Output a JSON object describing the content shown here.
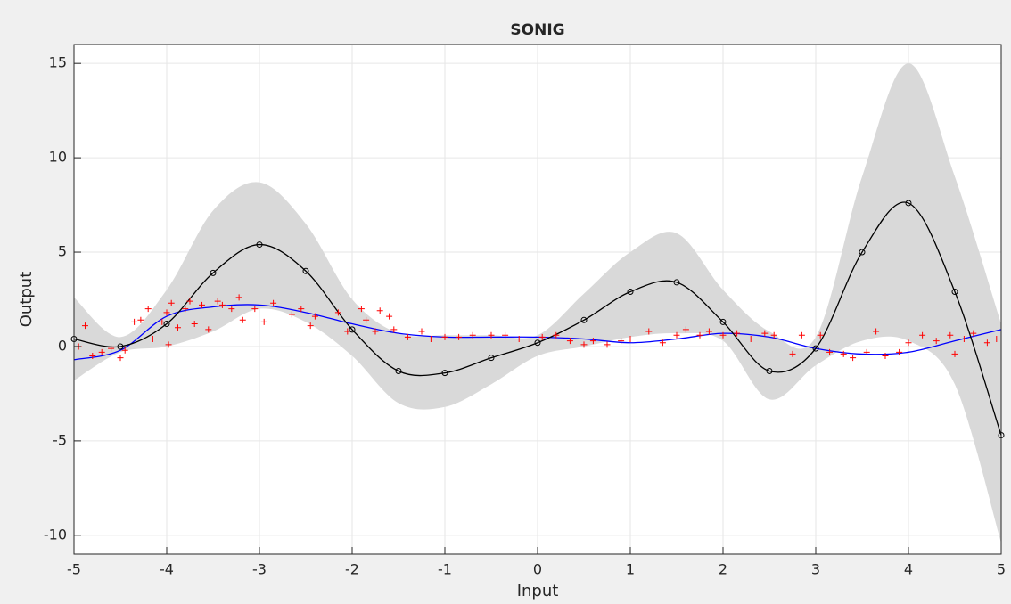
{
  "chart_data": {
    "type": "line",
    "title": "SONIG",
    "xlabel": "Input",
    "ylabel": "Output",
    "xlim": [
      -5,
      5
    ],
    "ylim": [
      -11,
      16
    ],
    "xticks": [
      -5,
      -4,
      -3,
      -2,
      -1,
      0,
      1,
      2,
      3,
      4,
      5
    ],
    "yticks": [
      -10,
      -5,
      0,
      5,
      10,
      15
    ],
    "grid": true,
    "band": {
      "color": "#d9d9d9",
      "x": [
        -5,
        -4.5,
        -4,
        -3.5,
        -3,
        -2.5,
        -2,
        -1.5,
        -1,
        -0.5,
        0,
        0.5,
        1,
        1.5,
        2,
        2.5,
        3,
        3.5,
        4,
        4.5,
        5
      ],
      "upper": [
        2.6,
        0.5,
        3.0,
        7.2,
        8.7,
        6.5,
        2.5,
        0.7,
        0.6,
        0.6,
        0.6,
        2.8,
        5.0,
        6.0,
        3.0,
        0.8,
        0.5,
        9.0,
        15.0,
        9.0,
        1.2
      ],
      "lower": [
        -1.8,
        -0.3,
        0,
        0.8,
        2.0,
        1.3,
        -0.5,
        -3.0,
        -3.2,
        -2.0,
        -0.5,
        0,
        0.5,
        0.7,
        0.3,
        -2.8,
        -1.0,
        0.3,
        0.3,
        -2.0,
        -10.4
      ]
    },
    "series": [
      {
        "color": "#0000ff",
        "marker": "none",
        "x": [
          -5,
          -4.5,
          -4,
          -3.5,
          -3,
          -2.5,
          -2,
          -1.5,
          -1,
          -0.5,
          0,
          0.5,
          1,
          1.5,
          2,
          2.5,
          3,
          3.5,
          4,
          4.5,
          5
        ],
        "values": [
          -0.7,
          -0.2,
          1.6,
          2.1,
          2.2,
          1.8,
          1.2,
          0.7,
          0.5,
          0.5,
          0.5,
          0.4,
          0.2,
          0.4,
          0.7,
          0.5,
          -0.1,
          -0.4,
          -0.3,
          0.3,
          0.9
        ]
      },
      {
        "color": "#000000",
        "marker": "circle",
        "x": [
          -5,
          -4.5,
          -4,
          -3.5,
          -3,
          -2.5,
          -2,
          -1.5,
          -1,
          -0.5,
          0,
          0.5,
          1,
          1.5,
          2,
          2.5,
          3,
          3.5,
          4,
          4.5,
          5
        ],
        "values": [
          0.4,
          0,
          1.2,
          3.9,
          5.4,
          4.0,
          0.9,
          -1.3,
          -1.4,
          -0.6,
          0.2,
          1.4,
          2.9,
          3.4,
          1.3,
          -1.3,
          -0.1,
          5.0,
          7.6,
          2.9,
          -4.7
        ]
      }
    ],
    "scatter": {
      "color": "#ff0000",
      "x": [
        -4.95,
        -4.88,
        -4.8,
        -4.7,
        -4.6,
        -4.5,
        -4.45,
        -4.35,
        -4.28,
        -4.2,
        -4.15,
        -4.05,
        -4.0,
        -3.98,
        -3.95,
        -3.88,
        -3.8,
        -3.75,
        -3.7,
        -3.62,
        -3.55,
        -3.45,
        -3.4,
        -3.3,
        -3.22,
        -3.18,
        -3.05,
        -2.95,
        -2.85,
        -2.65,
        -2.55,
        -2.45,
        -2.4,
        -2.15,
        -2.05,
        -1.9,
        -1.85,
        -1.75,
        -1.7,
        -1.6,
        -1.55,
        -1.4,
        -1.25,
        -1.15,
        -1.0,
        -0.85,
        -0.7,
        -0.5,
        -0.35,
        -0.2,
        0.05,
        0.2,
        0.35,
        0.5,
        0.6,
        0.75,
        0.9,
        1.0,
        1.2,
        1.35,
        1.5,
        1.6,
        1.75,
        1.85,
        2.0,
        2.15,
        2.3,
        2.45,
        2.55,
        2.75,
        2.85,
        3.05,
        3.15,
        3.3,
        3.4,
        3.55,
        3.65,
        3.75,
        3.9,
        4.0,
        4.15,
        4.3,
        4.45,
        4.5,
        4.6,
        4.7,
        4.85,
        4.95
      ],
      "values": [
        0.0,
        1.1,
        -0.5,
        -0.3,
        -0.1,
        -0.6,
        -0.2,
        1.3,
        1.4,
        2.0,
        0.4,
        1.3,
        1.8,
        0.1,
        2.3,
        1.0,
        2.0,
        2.4,
        1.2,
        2.2,
        0.9,
        2.4,
        2.2,
        2.0,
        2.6,
        1.4,
        2.0,
        1.3,
        2.3,
        1.7,
        2.0,
        1.1,
        1.6,
        1.8,
        0.8,
        2.0,
        1.4,
        0.8,
        1.9,
        1.6,
        0.9,
        0.5,
        0.8,
        0.4,
        0.5,
        0.5,
        0.6,
        0.6,
        0.6,
        0.4,
        0.5,
        0.6,
        0.3,
        0.1,
        0.3,
        0.1,
        0.3,
        0.4,
        0.8,
        0.2,
        0.6,
        0.9,
        0.6,
        0.8,
        0.6,
        0.7,
        0.4,
        0.7,
        0.6,
        -0.4,
        0.6,
        0.6,
        -0.3,
        -0.4,
        -0.6,
        -0.3,
        0.8,
        -0.5,
        -0.3,
        0.2,
        0.6,
        0.3,
        0.6,
        -0.4,
        0.4,
        0.7,
        0.2,
        0.4
      ]
    }
  }
}
